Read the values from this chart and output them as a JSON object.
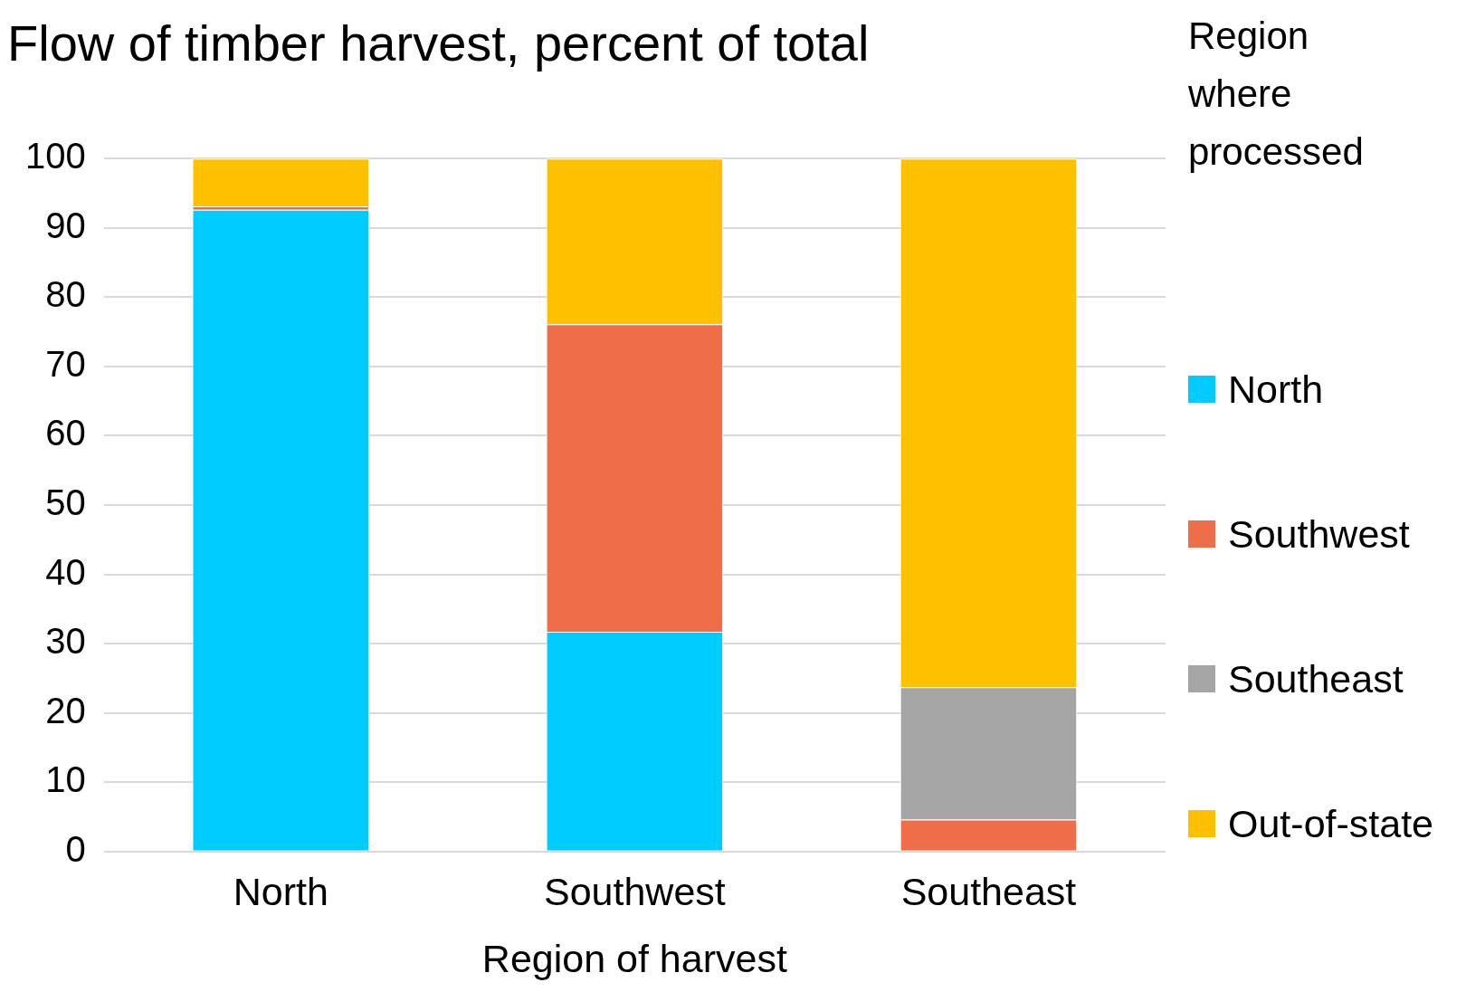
{
  "chart_data": {
    "type": "bar",
    "title": "Flow of timber harvest, percent of total",
    "xlabel": "Region of harvest",
    "legend_title": "Region where processed",
    "categories": [
      "North",
      "Southwest",
      "Southeast"
    ],
    "stacked": true,
    "series": [
      {
        "name": "North",
        "color": "#00ccff",
        "values": [
          92.6,
          31.7,
          0
        ]
      },
      {
        "name": "Southwest",
        "color": "#ee6e4a",
        "values": [
          0.5,
          44.4,
          4.6
        ]
      },
      {
        "name": "Southeast",
        "color": "#a5a5a5",
        "values": [
          0,
          0,
          19.1
        ]
      },
      {
        "name": "Out-of-state",
        "color": "#ffc000",
        "values": [
          6.9,
          23.9,
          76.3
        ]
      }
    ],
    "ylim": [
      0,
      100
    ],
    "yticks": [
      0,
      10,
      20,
      30,
      40,
      50,
      60,
      70,
      80,
      90,
      100
    ],
    "grid": "y",
    "legend": "right"
  }
}
